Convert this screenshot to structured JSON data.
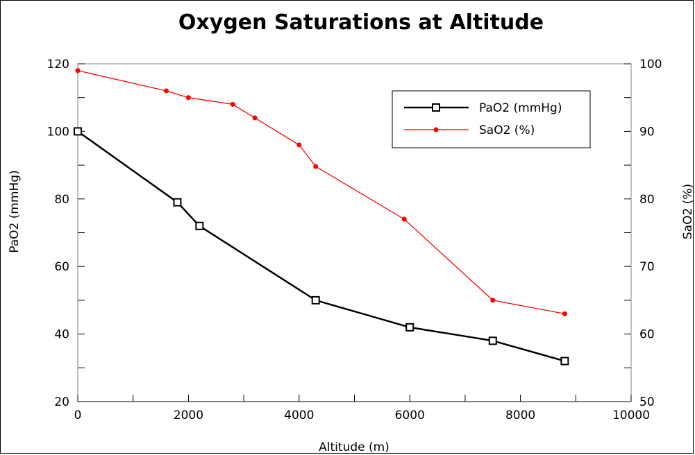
{
  "chart_data": {
    "type": "line",
    "title": "Oxygen Saturations at Altitude",
    "xlabel": "Altitude (m)",
    "ylabel_left": "PaO2 (mmHg)",
    "ylabel_right": "SaO2 (%)",
    "xlim": [
      0,
      10000
    ],
    "ylim_left": [
      20,
      120
    ],
    "ylim_right": [
      50,
      100
    ],
    "x_ticks": [
      0,
      2000,
      4000,
      6000,
      8000,
      10000
    ],
    "y_ticks_left": [
      20,
      40,
      60,
      80,
      100,
      120
    ],
    "y_ticks_right": [
      50,
      60,
      70,
      80,
      90,
      100
    ],
    "grid": false,
    "legend_position": "top-right",
    "series": [
      {
        "name": "PaO2 (mmHg)",
        "axis": "left",
        "color": "#000000",
        "marker": "open-square",
        "points": [
          [
            0,
            100
          ],
          [
            1800,
            79
          ],
          [
            2200,
            72
          ],
          [
            4300,
            50
          ],
          [
            6000,
            42
          ],
          [
            7500,
            38
          ],
          [
            8800,
            32
          ]
        ]
      },
      {
        "name": "SaO2 (%)",
        "axis": "right",
        "color": "#ff0000",
        "marker": "filled-dot",
        "points": [
          [
            0,
            99
          ],
          [
            1600,
            96
          ],
          [
            2000,
            95
          ],
          [
            2800,
            94
          ],
          [
            3200,
            92
          ],
          [
            4000,
            88
          ],
          [
            4300,
            84.8
          ],
          [
            5900,
            77
          ],
          [
            7500,
            65
          ],
          [
            8800,
            63
          ]
        ]
      }
    ]
  }
}
